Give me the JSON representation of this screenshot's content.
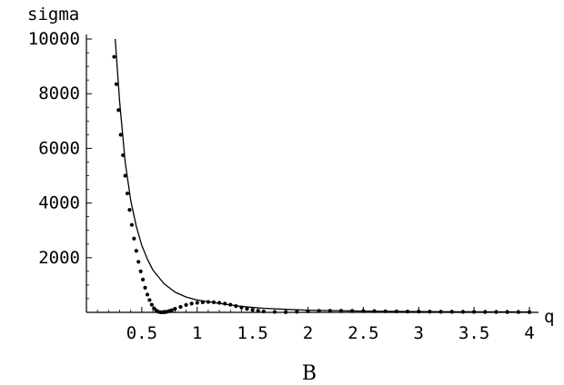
{
  "chart_data": {
    "type": "line",
    "caption": "B",
    "xlabel": "q",
    "ylabel": "sigma",
    "xlim": [
      0,
      4
    ],
    "ylim": [
      0,
      10000
    ],
    "x_ticks": [
      0.5,
      1,
      1.5,
      2,
      2.5,
      3,
      3.5,
      4
    ],
    "x_tick_labels": [
      "0.5",
      "1",
      "1.5",
      "2",
      "2.5",
      "3",
      "3.5",
      "4"
    ],
    "y_ticks": [
      2000,
      4000,
      6000,
      8000,
      10000
    ],
    "y_tick_labels": [
      "2000",
      "4000",
      "6000",
      "8000",
      "10000"
    ],
    "grid": false,
    "series": [
      {
        "style": "solid-line",
        "x": [
          0.26,
          0.3,
          0.35,
          0.4,
          0.45,
          0.5,
          0.55,
          0.6,
          0.7,
          0.8,
          0.9,
          1.0,
          1.1,
          1.2,
          1.3,
          1.4,
          1.5,
          1.6,
          1.8,
          2.0,
          2.5,
          3.0,
          3.5,
          4.0
        ],
        "y": [
          10000,
          7700,
          5500,
          4100,
          3150,
          2450,
          1950,
          1550,
          1050,
          740,
          560,
          450,
          390,
          330,
          270,
          220,
          180,
          150,
          110,
          80,
          45,
          30,
          20,
          15
        ]
      },
      {
        "style": "dotted",
        "x": [
          0.25,
          0.27,
          0.29,
          0.31,
          0.33,
          0.35,
          0.37,
          0.39,
          0.41,
          0.43,
          0.45,
          0.47,
          0.49,
          0.51,
          0.53,
          0.55,
          0.57,
          0.59,
          0.61,
          0.63,
          0.65,
          0.67,
          0.69,
          0.71,
          0.73,
          0.75,
          0.77,
          0.8,
          0.85,
          0.9,
          0.95,
          1.0,
          1.05,
          1.1,
          1.15,
          1.2,
          1.25,
          1.3,
          1.35,
          1.4,
          1.45,
          1.5,
          1.55,
          1.6,
          1.7,
          1.8,
          1.9,
          2.0,
          2.1,
          2.2,
          2.3,
          2.4,
          2.5,
          2.6,
          2.7,
          2.8,
          2.9,
          3.0,
          3.1,
          3.2,
          3.3,
          3.4,
          3.5,
          3.6,
          3.7,
          3.8,
          3.9,
          4.0
        ],
        "y": [
          9350,
          8350,
          7400,
          6500,
          5750,
          5000,
          4350,
          3750,
          3200,
          2700,
          2250,
          1850,
          1500,
          1200,
          900,
          650,
          450,
          280,
          150,
          70,
          20,
          5,
          3,
          8,
          25,
          50,
          80,
          130,
          200,
          270,
          320,
          350,
          370,
          380,
          370,
          350,
          320,
          280,
          230,
          180,
          130,
          90,
          60,
          35,
          15,
          8,
          20,
          40,
          55,
          60,
          60,
          55,
          50,
          45,
          40,
          35,
          30,
          28,
          25,
          22,
          20,
          18,
          16,
          14,
          12,
          11,
          10,
          9
        ]
      }
    ]
  }
}
